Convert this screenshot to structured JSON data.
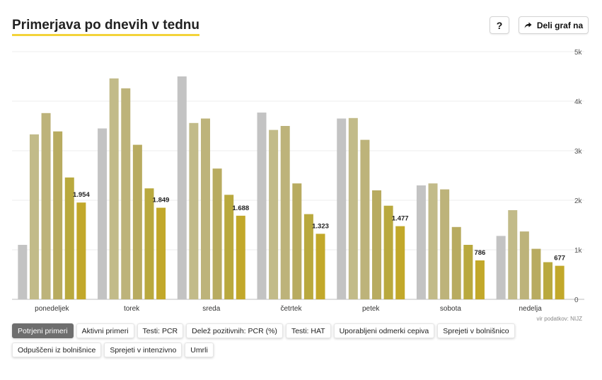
{
  "title": "Primerjava po dnevih v tednu",
  "help_label": "?",
  "share_label": "Deli graf na",
  "source": "vir podatkov: NIJZ",
  "tabs": [
    {
      "label": "Potrjeni primeri",
      "active": true
    },
    {
      "label": "Aktivni primeri",
      "active": false
    },
    {
      "label": "Testi: PCR",
      "active": false
    },
    {
      "label": "Delež pozitivnih: PCR (%)",
      "active": false
    },
    {
      "label": "Testi: HAT",
      "active": false
    },
    {
      "label": "Uporabljeni odmerki cepiva",
      "active": false
    },
    {
      "label": "Sprejeti v bolnišnico",
      "active": false
    },
    {
      "label": "Odpuščeni iz bolnišnice",
      "active": false
    },
    {
      "label": "Sprejeti v intenzivno",
      "active": false
    },
    {
      "label": "Umrli",
      "active": false
    }
  ],
  "chart_data": {
    "type": "bar",
    "categories": [
      "ponedeljek",
      "torek",
      "sreda",
      "četrtek",
      "petek",
      "sobota",
      "nedelja"
    ],
    "series": [
      {
        "values": [
          1100,
          3450,
          4500,
          3770,
          3650,
          2300,
          1280
        ]
      },
      {
        "values": [
          3330,
          4460,
          3560,
          3420,
          3660,
          2340,
          1800
        ]
      },
      {
        "values": [
          3760,
          4260,
          3650,
          3500,
          3220,
          2220,
          1370
        ]
      },
      {
        "values": [
          3390,
          3120,
          2640,
          2340,
          2200,
          1460,
          1020
        ]
      },
      {
        "values": [
          2460,
          2240,
          2110,
          1720,
          1890,
          1100,
          750
        ]
      },
      {
        "values": [
          1954,
          1849,
          1688,
          1323,
          1477,
          786,
          677
        ]
      }
    ],
    "data_labels": [
      "1.954",
      "1.849",
      "1.688",
      "1.323",
      "1.477",
      "786",
      "677"
    ],
    "yticks": [
      "0",
      "1k",
      "2k",
      "3k",
      "4k",
      "5k"
    ],
    "ylim": [
      0,
      5000
    ],
    "colors": [
      "#c3c3c3",
      "#c2bb89",
      "#bdb37a",
      "#b8ab60",
      "#b9a93e",
      "#c2a82a"
    ],
    "grid": true,
    "legend": "none"
  }
}
